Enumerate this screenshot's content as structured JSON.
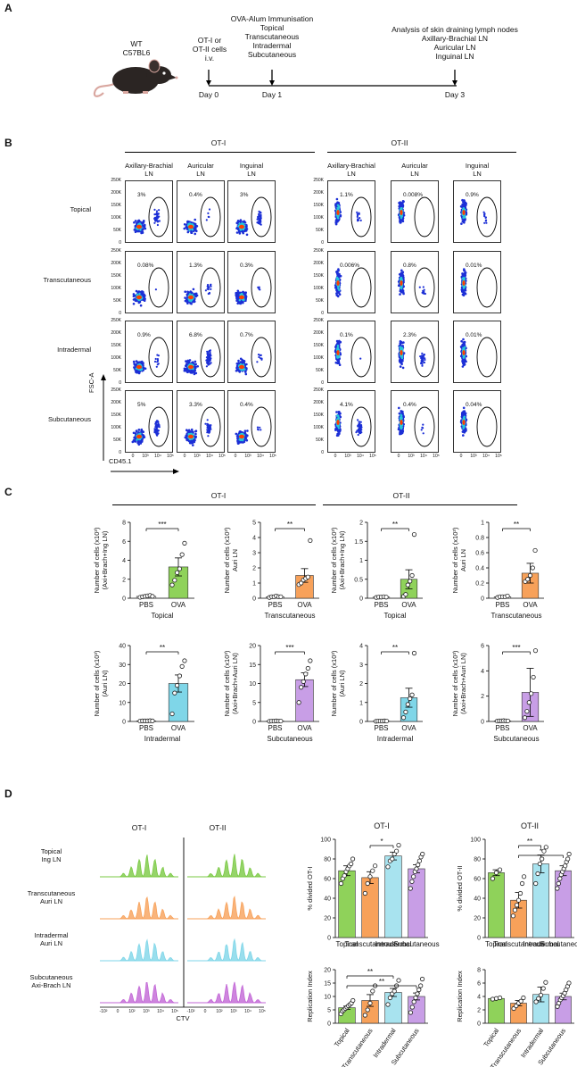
{
  "panels": {
    "A": {
      "label": "A",
      "mouse": [
        "WT",
        "C57BL6"
      ],
      "events": [
        {
          "lines": [
            "OT-I or",
            "OT-II cells",
            "i.v."
          ],
          "day": "Day 0"
        },
        {
          "lines": [
            "OVA-Alum Immunisation",
            "Topical",
            "Transcutaneous",
            "Intradermal",
            "Subcutaneous"
          ],
          "day": "Day 1"
        },
        {
          "lines": [
            "Analysis of skin draining lymph nodes",
            "Axillary-Brachial LN",
            "Auricular LN",
            "Inguinal LN"
          ],
          "day": "Day 3"
        }
      ],
      "colors": {
        "mouse_body": "#2b2523",
        "mouse_pink": "#d9a7a0"
      }
    },
    "B": {
      "label": "B",
      "groups": [
        "OT-I",
        "OT-II"
      ],
      "columns": [
        "Axillary-Brachial LN",
        "Auricular LN",
        "Inguinal LN",
        "Axillary-Brachial LN",
        "Auricular LN",
        "Inguinal LN"
      ],
      "rows": [
        "Topical",
        "Transcutaneous",
        "Intradermal",
        "Subcutaneous"
      ],
      "percentages": [
        [
          "3%",
          "0.4%",
          "3%",
          "1.1%",
          "0.008%",
          "0.9%"
        ],
        [
          "0.08%",
          "1.3%",
          "0.3%",
          "0.006%",
          "0.8%",
          "0.01%"
        ],
        [
          "0.9%",
          "6.8%",
          "0.7%",
          "0.1%",
          "2.3%",
          "0.01%"
        ],
        [
          "5%",
          "3.3%",
          "0.4%",
          "4.1%",
          "0.4%",
          "0.04%"
        ]
      ],
      "y_ticks": [
        "250K",
        "200K",
        "150K",
        "100K",
        "50K",
        "0"
      ],
      "x_ticks": [
        "0",
        "10³",
        "10⁴",
        "10⁵"
      ],
      "y_axis_label": "FSC-A",
      "x_axis_label": "CD45.1",
      "colors": {
        "density_outer": "#1c2fd6",
        "density_mid": "#27c7d8",
        "density_hot": "#ff3d00"
      }
    },
    "C": {
      "label": "C",
      "groups": [
        "OT-I",
        "OT-II"
      ],
      "x_categories": [
        "PBS",
        "OVA"
      ]
    },
    "D": {
      "label": "D",
      "hist_cols": [
        "OT-I",
        "OT-II"
      ],
      "hist_rows": [
        {
          "lines": [
            "Topical",
            "Ing LN"
          ],
          "color": "#7ac943"
        },
        {
          "lines": [
            "Transcutaneous",
            "Auri LN"
          ],
          "color": "#f7a15a"
        },
        {
          "lines": [
            "Intradermal",
            "Auri LN"
          ],
          "color": "#7fd6e8"
        },
        {
          "lines": [
            "Subcutaneous",
            "Axi-Brach LN"
          ],
          "color": "#c266d6"
        }
      ],
      "hist_x_ticks": [
        "-10²",
        "0",
        "10²",
        "10³",
        "10⁴",
        "10⁵"
      ],
      "hist_x_label": "CTV",
      "bar_categories": [
        "Topical",
        "Transcutaneous",
        "Intradermal",
        "Subcutaneous"
      ]
    }
  },
  "chart_data": [
    {
      "type": "bar",
      "id": "C1",
      "group": "OT-I",
      "title": "",
      "xlabel": "Topical",
      "ylabel": "Number of cells (x10³) (Axi+Brach+Ing LN)",
      "categories": [
        "PBS",
        "OVA"
      ],
      "values": [
        0.2,
        3.3
      ],
      "errors": [
        0.1,
        0.95
      ],
      "ylim": [
        0,
        8
      ],
      "yticks": [
        0,
        2,
        4,
        6,
        8
      ],
      "sig": "***",
      "color": "#8fd25a",
      "points": [
        [
          0.1,
          0.15,
          0.2,
          0.25,
          0.3,
          0.2
        ],
        [
          1.4,
          1.9,
          2.7,
          3.1,
          4.6,
          5.8
        ]
      ]
    },
    {
      "type": "bar",
      "id": "C2",
      "group": "OT-I",
      "title": "",
      "xlabel": "Transcutaneous",
      "ylabel": "Number of cells (x10³) Auri LN",
      "categories": [
        "PBS",
        "OVA"
      ],
      "values": [
        0.1,
        1.5
      ],
      "errors": [
        0.05,
        0.45
      ],
      "ylim": [
        0,
        5
      ],
      "yticks": [
        0,
        1,
        2,
        3,
        4,
        5
      ],
      "sig": "**",
      "color": "#f7a15a",
      "points": [
        [
          0.05,
          0.1,
          0.1,
          0.15,
          0.1,
          0.1
        ],
        [
          0.9,
          1.0,
          1.2,
          1.3,
          1.4,
          3.8
        ]
      ]
    },
    {
      "type": "bar",
      "id": "C3",
      "group": "OT-II",
      "title": "",
      "xlabel": "Topical",
      "ylabel": "Number of cells (x10³) (Axi+Brach+Ing LN)",
      "categories": [
        "PBS",
        "OVA"
      ],
      "values": [
        0.03,
        0.5
      ],
      "errors": [
        0.01,
        0.25
      ],
      "ylim": [
        0,
        2
      ],
      "yticks": [
        0,
        0.5,
        1,
        1.5,
        2
      ],
      "sig": "**",
      "color": "#8fd25a",
      "points": [
        [
          0.02,
          0.03,
          0.03,
          0.04,
          0.03
        ],
        [
          0.05,
          0.1,
          0.35,
          0.45,
          0.6,
          1.68
        ]
      ]
    },
    {
      "type": "bar",
      "id": "C4",
      "group": "OT-II",
      "title": "",
      "xlabel": "Transcutaneous",
      "ylabel": "Number of cells (x10³) Auri LN",
      "categories": [
        "PBS",
        "OVA"
      ],
      "values": [
        0.02,
        0.33
      ],
      "errors": [
        0.01,
        0.13
      ],
      "ylim": [
        0,
        1
      ],
      "yticks": [
        0,
        0.2,
        0.4,
        0.6,
        0.8,
        1
      ],
      "sig": "**",
      "color": "#f7a15a",
      "points": [
        [
          0.01,
          0.02,
          0.02,
          0.02,
          0.03
        ],
        [
          0.22,
          0.25,
          0.3,
          0.4,
          0.63
        ]
      ]
    },
    {
      "type": "bar",
      "id": "C5",
      "group": "OT-I",
      "title": "",
      "xlabel": "Intradermal",
      "ylabel": "Number of cells (x10³) (Auri LN)",
      "categories": [
        "PBS",
        "OVA"
      ],
      "values": [
        0.3,
        20
      ],
      "errors": [
        0.1,
        4.5
      ],
      "ylim": [
        0,
        40
      ],
      "yticks": [
        0,
        10,
        20,
        30,
        40
      ],
      "sig": "**",
      "color": "#7fd6e8",
      "points": [
        [
          0.2,
          0.3,
          0.3,
          0.3,
          0.4,
          0.3
        ],
        [
          4,
          15,
          19,
          24,
          29,
          32
        ]
      ]
    },
    {
      "type": "bar",
      "id": "C6",
      "group": "OT-I",
      "title": "",
      "xlabel": "Subcutaneous",
      "ylabel": "Number of cells (x10³) (Axi+Brach+Auri LN)",
      "categories": [
        "PBS",
        "OVA"
      ],
      "values": [
        0.1,
        11
      ],
      "errors": [
        0.05,
        1.8
      ],
      "ylim": [
        0,
        20
      ],
      "yticks": [
        0,
        5,
        10,
        15,
        20
      ],
      "sig": "***",
      "color": "#c89ee6",
      "points": [
        [
          0.05,
          0.1,
          0.1,
          0.15,
          0.1,
          0.1
        ],
        [
          5,
          9,
          10.5,
          12.5,
          14,
          16
        ]
      ]
    },
    {
      "type": "bar",
      "id": "C7",
      "group": "OT-II",
      "title": "",
      "xlabel": "Intradermal",
      "ylabel": "Number of cells (x10³) (Auri LN)",
      "categories": [
        "PBS",
        "OVA"
      ],
      "values": [
        0.02,
        1.25
      ],
      "errors": [
        0.01,
        0.5
      ],
      "ylim": [
        0,
        4
      ],
      "yticks": [
        0,
        1,
        2,
        3,
        4
      ],
      "sig": "**",
      "color": "#7fd6e8",
      "points": [
        [
          0.01,
          0.02,
          0.02,
          0.02,
          0.03,
          0.02
        ],
        [
          0.2,
          0.5,
          0.9,
          1.2,
          1.4,
          3.6
        ]
      ]
    },
    {
      "type": "bar",
      "id": "C8",
      "group": "OT-II",
      "title": "",
      "xlabel": "Subcutaneous",
      "ylabel": "Number of cells (x10³) (Axi+Brach+Auri LN)",
      "categories": [
        "PBS",
        "OVA"
      ],
      "values": [
        0.05,
        2.3
      ],
      "errors": [
        0.02,
        1.9
      ],
      "ylim": [
        0,
        6
      ],
      "yticks": [
        0,
        2,
        4,
        6
      ],
      "sig": "***",
      "color": "#c89ee6",
      "points": [
        [
          0.03,
          0.05,
          0.05,
          0.06,
          0.05,
          0.04
        ],
        [
          0.3,
          0.8,
          1.5,
          2.2,
          3.5,
          5.6
        ]
      ]
    },
    {
      "type": "bar",
      "id": "D1",
      "group": "OT-I",
      "title": "OT-I",
      "xlabel": "",
      "ylabel": "% divided OT-I",
      "categories": [
        "Topical",
        "Transcutaneous",
        "Intradermal",
        "Subcutaneous"
      ],
      "values": [
        68,
        61,
        83,
        70
      ],
      "errors": [
        5,
        6,
        4,
        4
      ],
      "ylim": [
        0,
        100
      ],
      "yticks": [
        0,
        20,
        40,
        60,
        80,
        100
      ],
      "colors": [
        "#8fd25a",
        "#f7a15a",
        "#a8e3ef",
        "#c89ee6"
      ],
      "sig": [
        {
          "from": 1,
          "to": 2,
          "label": "*"
        }
      ],
      "points": [
        [
          55,
          60,
          63,
          67,
          70,
          73,
          75,
          80
        ],
        [
          45,
          55,
          62,
          68,
          73
        ],
        [
          72,
          78,
          80,
          85,
          88,
          94
        ],
        [
          50,
          57,
          62,
          67,
          70,
          74,
          78,
          82,
          85
        ]
      ]
    },
    {
      "type": "bar",
      "id": "D2",
      "group": "OT-II",
      "title": "OT-II",
      "xlabel": "",
      "ylabel": "% divided OT-II",
      "categories": [
        "Topical",
        "Transcutaneous",
        "Intradermal",
        "Subcutaneous"
      ],
      "values": [
        66,
        38,
        75,
        68
      ],
      "errors": [
        3,
        8,
        9,
        5
      ],
      "ylim": [
        0,
        100
      ],
      "yticks": [
        0,
        20,
        40,
        60,
        80,
        100
      ],
      "colors": [
        "#8fd25a",
        "#f7a15a",
        "#a8e3ef",
        "#c89ee6"
      ],
      "sig": [
        {
          "from": 1,
          "to": 2,
          "label": "**"
        },
        {
          "from": 1,
          "to": 3,
          "label": "*"
        }
      ],
      "points": [
        [
          60,
          66,
          69
        ],
        [
          22,
          28,
          33,
          38,
          45,
          55,
          62
        ],
        [
          55,
          65,
          75,
          80,
          88,
          92
        ],
        [
          50,
          55,
          60,
          64,
          67,
          70,
          73,
          77,
          80,
          85
        ]
      ]
    },
    {
      "type": "bar",
      "id": "D3",
      "group": "OT-I",
      "title": "",
      "xlabel": "",
      "ylabel": "Replication Index",
      "categories": [
        "Topical",
        "Transcutaneous",
        "Intradermal",
        "Subcutaneous"
      ],
      "values": [
        5.8,
        8.5,
        11.5,
        10
      ],
      "errors": [
        0.6,
        2.2,
        1.5,
        1.3
      ],
      "ylim": [
        0,
        20
      ],
      "yticks": [
        0,
        5,
        10,
        15,
        20
      ],
      "colors": [
        "#8fd25a",
        "#f7a15a",
        "#a8e3ef",
        "#c89ee6"
      ],
      "sig": [
        {
          "from": 0,
          "to": 2,
          "label": "**"
        },
        {
          "from": 0,
          "to": 3,
          "label": "**"
        }
      ],
      "points": [
        [
          3.5,
          4.5,
          5,
          5.5,
          6,
          6.5,
          7,
          7.5,
          8.5
        ],
        [
          3,
          5,
          7.5,
          12,
          14
        ],
        [
          7,
          9.5,
          11,
          12,
          14,
          16
        ],
        [
          4,
          6,
          8,
          9.5,
          11,
          12.5,
          14,
          16.5
        ]
      ]
    },
    {
      "type": "bar",
      "id": "D4",
      "group": "OT-II",
      "title": "",
      "xlabel": "",
      "ylabel": "Replication Index",
      "categories": [
        "Topical",
        "Transcutaneous",
        "Intradermal",
        "Subcutaneous"
      ],
      "values": [
        3.7,
        3.0,
        4.3,
        4.0
      ],
      "errors": [
        0.1,
        0.4,
        1.1,
        0.5
      ],
      "ylim": [
        0,
        8
      ],
      "yticks": [
        0,
        2,
        4,
        6,
        8
      ],
      "colors": [
        "#8fd25a",
        "#f7a15a",
        "#a8e3ef",
        "#c89ee6"
      ],
      "sig": [],
      "points": [
        [
          3.6,
          3.7,
          3.8
        ],
        [
          2.2,
          2.6,
          3,
          3.3,
          3.8
        ],
        [
          3.2,
          3.7,
          4.2,
          5.2,
          6.1
        ],
        [
          2.5,
          3,
          3.5,
          3.8,
          4.1,
          4.5,
          5,
          5.5,
          6
        ]
      ]
    }
  ]
}
